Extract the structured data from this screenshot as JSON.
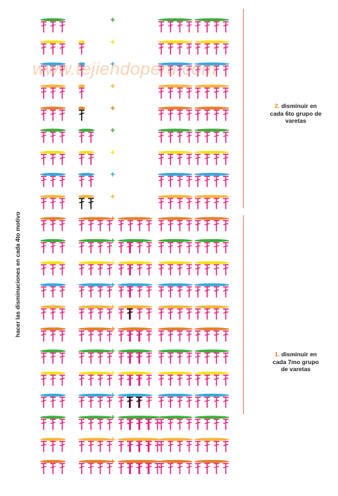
{
  "side_label": "hacer las disminuciones en cada 4to motivo",
  "watermark": "www.tejiendoperu.com",
  "note_top": {
    "number": "2.",
    "line1": " disminuir en",
    "line2": "cada 6to grupo de",
    "line3": "varetas"
  },
  "note_bottom": {
    "number": "1.",
    "line1": " disminuir en",
    "line2": "cada 7mo grupo",
    "line3": "de varetas"
  },
  "colors": {
    "stitch": "#e6257e",
    "decrease_stitch": "#111111",
    "bracket": "#e07060",
    "row_cycle": [
      "#3cae3a",
      "#f6e11a",
      "#35a9dc",
      "#f6b436",
      "#e6802a"
    ]
  },
  "pattern": {
    "group_counts_bottom": [
      3,
      4,
      4,
      4,
      4,
      4
    ],
    "rows": [
      {
        "color": "#e6802a",
        "groups": [
          3,
          4,
          4,
          4,
          4,
          4
        ]
      },
      {
        "color": "#f6b436",
        "groups": [
          3,
          4,
          4,
          4,
          4,
          4
        ]
      },
      {
        "color": "#3cae3a",
        "groups": [
          3,
          4,
          4,
          4,
          4,
          4
        ]
      },
      {
        "color": "#35a9dc",
        "groups": [
          3,
          4,
          4,
          "dec2",
          4,
          4
        ]
      },
      {
        "color": "#f6e11a",
        "groups": [
          3,
          4,
          4,
          2,
          4,
          4
        ]
      },
      {
        "color": "#3cae3a",
        "groups": [
          3,
          4,
          4,
          2,
          4,
          4
        ]
      },
      {
        "color": "#e6802a",
        "groups": [
          3,
          4,
          4,
          2,
          4,
          4
        ]
      },
      {
        "color": "#f6b436",
        "groups": [
          3,
          4,
          4,
          "dec1",
          4,
          4
        ]
      },
      {
        "color": "#35a9dc",
        "groups": [
          3,
          4,
          4,
          1,
          4,
          4
        ]
      },
      {
        "color": "#f6e11a",
        "groups": [
          3,
          4,
          4,
          1,
          4,
          4
        ]
      },
      {
        "color": "#3cae3a",
        "groups": [
          3,
          4,
          4,
          1,
          4,
          4
        ]
      },
      {
        "color": "#e6802a",
        "groups": [
          3,
          4,
          4,
          0,
          4,
          4
        ]
      },
      {
        "color": "#f6b436",
        "groups": [
          3,
          "dec2",
          0,
          0,
          4,
          4
        ]
      },
      {
        "color": "#35a9dc",
        "groups": [
          3,
          2,
          0,
          0,
          4,
          4
        ]
      },
      {
        "color": "#f6e11a",
        "groups": [
          3,
          2,
          0,
          0,
          4,
          4
        ]
      },
      {
        "color": "#3cae3a",
        "groups": [
          3,
          2,
          0,
          0,
          4,
          4
        ]
      },
      {
        "color": "#e6802a",
        "groups": [
          3,
          "dec1",
          0,
          0,
          4,
          4
        ]
      },
      {
        "color": "#f6b436",
        "groups": [
          3,
          1,
          0,
          0,
          4,
          4
        ]
      },
      {
        "color": "#35a9dc",
        "groups": [
          3,
          1,
          0,
          0,
          4,
          4
        ]
      },
      {
        "color": "#f6e11a",
        "groups": [
          3,
          1,
          0,
          0,
          4,
          4
        ]
      },
      {
        "color": "#3cae3a",
        "groups": [
          3,
          0,
          0,
          0,
          4,
          4
        ]
      }
    ]
  }
}
